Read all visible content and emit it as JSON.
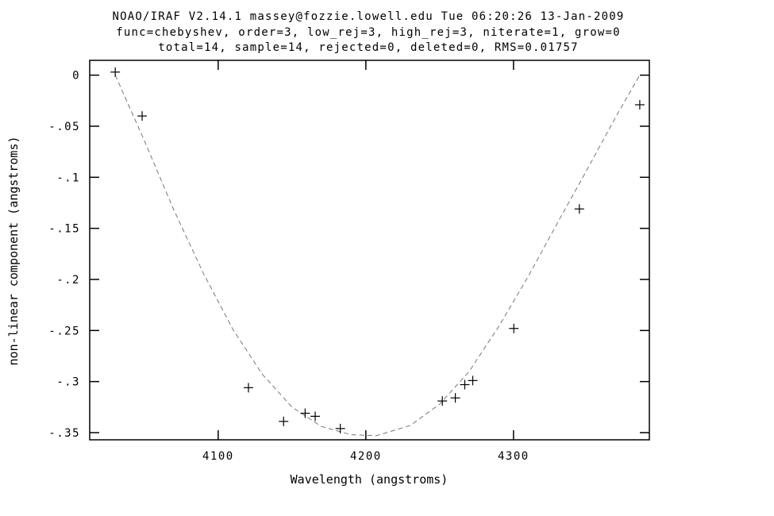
{
  "header": {
    "line1": "NOAO/IRAF V2.14.1 massey@fozzie.lowell.edu Tue 06:20:26 13-Jan-2009",
    "line2": "func=chebyshev, order=3, low_rej=3, high_rej=3, niterate=1, grow=0",
    "line3": "total=14, sample=14, rejected=0, deleted=0, RMS=0.01757"
  },
  "chart_data": {
    "type": "scatter",
    "xlabel": "Wavelength (angstroms)",
    "ylabel": "non-linear component (angstroms)",
    "xlim": [
      4013,
      4392
    ],
    "ylim": [
      -0.357,
      0.0145
    ],
    "grid": false,
    "x_ticks": [
      {
        "value": 4100,
        "label": "4100"
      },
      {
        "value": 4200,
        "label": "4200"
      },
      {
        "value": 4300,
        "label": "4300"
      }
    ],
    "y_ticks": [
      {
        "value": 0,
        "label": "0"
      },
      {
        "value": -0.05,
        "label": "-.05"
      },
      {
        "value": -0.1,
        "label": "-.1"
      },
      {
        "value": -0.15,
        "label": "-.15"
      },
      {
        "value": -0.2,
        "label": "-.2"
      },
      {
        "value": -0.25,
        "label": "-.25"
      },
      {
        "value": -0.3,
        "label": "-.3"
      },
      {
        "value": -0.35,
        "label": "-.35"
      }
    ],
    "series": [
      {
        "marker": "plus",
        "color": "#000000",
        "points": [
          {
            "x": 4030.3,
            "y": 0.003
          },
          {
            "x": 4048.5,
            "y": -0.04
          },
          {
            "x": 4120.5,
            "y": -0.306
          },
          {
            "x": 4144.3,
            "y": -0.339
          },
          {
            "x": 4158.9,
            "y": -0.331
          },
          {
            "x": 4165.7,
            "y": -0.334
          },
          {
            "x": 4182.7,
            "y": -0.346
          },
          {
            "x": 4251.8,
            "y": -0.319
          },
          {
            "x": 4260.6,
            "y": -0.316
          },
          {
            "x": 4267.0,
            "y": -0.303
          },
          {
            "x": 4272.4,
            "y": -0.299
          },
          {
            "x": 4300.2,
            "y": -0.248
          },
          {
            "x": 4344.6,
            "y": -0.131
          },
          {
            "x": 4385.5,
            "y": -0.029
          }
        ]
      }
    ],
    "fit": {
      "style": "dashed",
      "color": "#777777",
      "x": [
        4030.3,
        4050,
        4070,
        4090,
        4110,
        4130,
        4150,
        4170,
        4190,
        4207,
        4230,
        4250,
        4270,
        4290,
        4310,
        4330,
        4350,
        4370,
        4385.5
      ],
      "y": [
        0.0,
        -0.064,
        -0.132,
        -0.194,
        -0.249,
        -0.293,
        -0.325,
        -0.344,
        -0.352,
        -0.353,
        -0.343,
        -0.322,
        -0.29,
        -0.246,
        -0.197,
        -0.144,
        -0.092,
        -0.039,
        0.0
      ]
    }
  }
}
